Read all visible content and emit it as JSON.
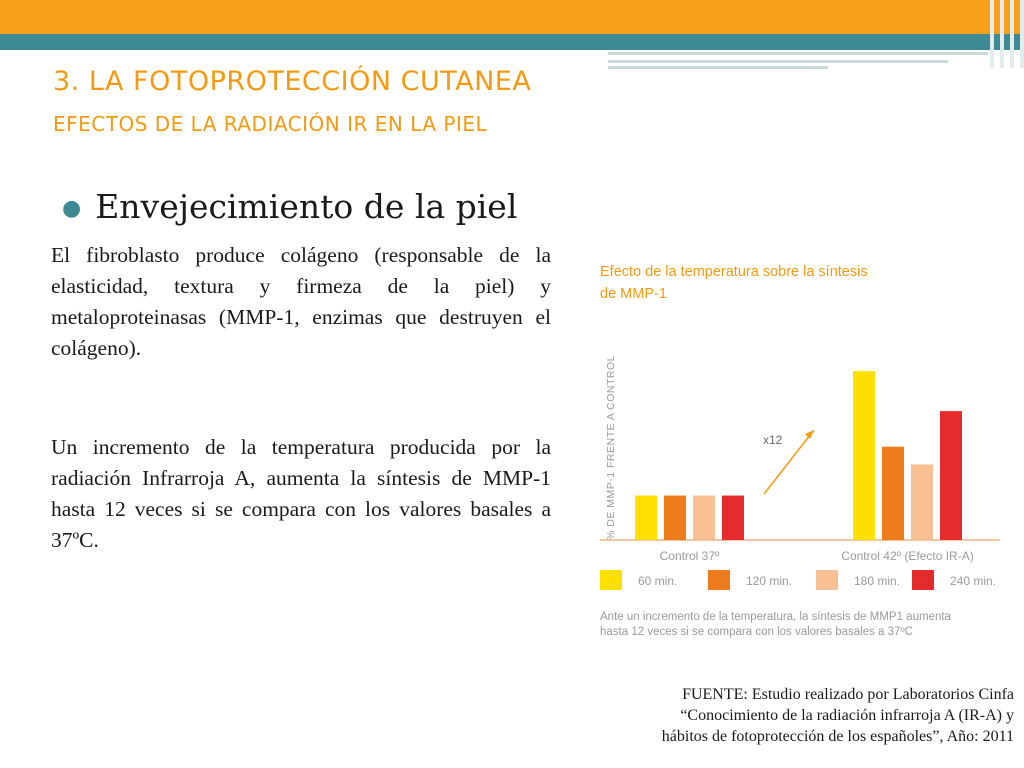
{
  "slide": {
    "title": "3. LA FOTOPROTECCIÓN CUTANEA",
    "subtitle": "EFECTOS DE LA RADIACIÓN IR EN LA PIEL",
    "heading": "Envejecimiento de la piel",
    "paragraph_1": "El fibroblasto produce colágeno (responsable de la elasticidad, textura y firmeza de la piel) y metaloproteinasas (MMP-1, enzimas que destruyen el colágeno).",
    "paragraph_2": "Un incremento de la temperatura producida por la radiación Infrarroja A, aumenta la síntesis de MMP-1 hasta 12 veces si se compara con los valores basales a 37ºC.",
    "source_lines": [
      "FUENTE: Estudio realizado por Laboratorios Cinfa",
      "“Conocimiento de la radiación infrarroja A (IR-A) y",
      "hábitos de fotoprotección de los españoles”, Año: 2011"
    ],
    "colors": {
      "orange": "#f7a11a",
      "teal": "#3d8a94"
    }
  },
  "chart_data": {
    "type": "bar",
    "title_lines": [
      "Efecto de la temperatura sobre la síntesis",
      "de MMP-1"
    ],
    "ylabel": "% DE MMP-1 FRENTE A CONTROL",
    "categories": [
      "Control 37º",
      "Control 42º (Efecto IR-A)"
    ],
    "series": [
      {
        "name": "60 min.",
        "color": "#ffe000",
        "values": [
          1.0,
          3.8
        ]
      },
      {
        "name": "120 min.",
        "color": "#ef7c1a",
        "values": [
          1.0,
          2.1
        ]
      },
      {
        "name": "180 min.",
        "color": "#f8c093",
        "values": [
          1.0,
          1.7
        ]
      },
      {
        "name": "240 min.",
        "color": "#e52b2b",
        "values": [
          1.0,
          2.9
        ]
      }
    ],
    "annotation": "x12",
    "caption_lines": [
      "Ante un incremento de la temperatura, la síntesis de MMP1 aumenta",
      "hasta 12 veces si se compara con los valores basales a 37ºC"
    ],
    "grid": false,
    "legend_position": "bottom",
    "ylim": [
      0,
      4.5
    ]
  }
}
